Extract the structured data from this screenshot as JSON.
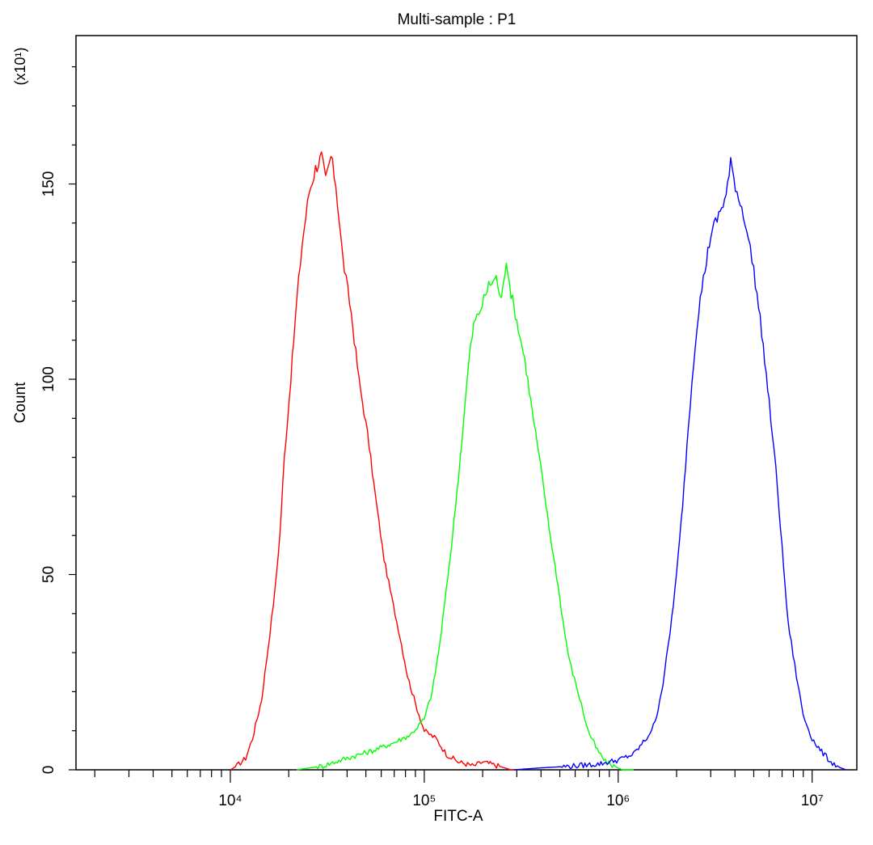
{
  "chart_data": {
    "type": "line",
    "title": "Multi-sample : P1",
    "xlabel": "FITC-A",
    "ylabel": "Count",
    "y_multiplier_label": "(x10¹)",
    "x_scale": "log",
    "xlim": [
      1600,
      17000000
    ],
    "ylim": [
      0,
      188
    ],
    "x_ticks": [
      {
        "value": 10000,
        "label": "10⁴"
      },
      {
        "value": 100000,
        "label": "10⁵"
      },
      {
        "value": 1000000,
        "label": "10⁶"
      },
      {
        "value": 10000000,
        "label": "10⁷"
      }
    ],
    "y_ticks": [
      {
        "value": 0,
        "label": "0"
      },
      {
        "value": 50,
        "label": "50"
      },
      {
        "value": 100,
        "label": "100"
      },
      {
        "value": 150,
        "label": "150"
      }
    ],
    "grid": false,
    "legend": "none",
    "series": [
      {
        "color": "#ff0000",
        "points": [
          [
            10000,
            0
          ],
          [
            10800,
            1
          ],
          [
            12000,
            3
          ],
          [
            13000,
            8
          ],
          [
            14500,
            18
          ],
          [
            16000,
            35
          ],
          [
            17000,
            46
          ],
          [
            18000,
            60
          ],
          [
            19000,
            80
          ],
          [
            20500,
            100
          ],
          [
            22000,
            120
          ],
          [
            23500,
            135
          ],
          [
            25500,
            148
          ],
          [
            27500,
            154
          ],
          [
            29500,
            157
          ],
          [
            31000,
            151
          ],
          [
            33000,
            157
          ],
          [
            35000,
            150
          ],
          [
            38000,
            131
          ],
          [
            42000,
            117
          ],
          [
            46000,
            100
          ],
          [
            51000,
            86
          ],
          [
            56000,
            70
          ],
          [
            62000,
            54
          ],
          [
            68000,
            44
          ],
          [
            75000,
            34
          ],
          [
            82000,
            24
          ],
          [
            90000,
            17
          ],
          [
            100000,
            10
          ],
          [
            115000,
            8
          ],
          [
            130000,
            4
          ],
          [
            150000,
            2
          ],
          [
            180000,
            1
          ],
          [
            200000,
            2
          ],
          [
            240000,
            1
          ],
          [
            280000,
            0
          ],
          [
            310000,
            0
          ]
        ]
      },
      {
        "color": "#00ff00",
        "points": [
          [
            22000,
            0
          ],
          [
            30000,
            1
          ],
          [
            40000,
            3
          ],
          [
            55000,
            5
          ],
          [
            70000,
            7
          ],
          [
            85000,
            9
          ],
          [
            100000,
            13
          ],
          [
            110000,
            20
          ],
          [
            120000,
            32
          ],
          [
            130000,
            46
          ],
          [
            140000,
            60
          ],
          [
            150000,
            75
          ],
          [
            160000,
            90
          ],
          [
            170000,
            105
          ],
          [
            180000,
            114
          ],
          [
            195000,
            118
          ],
          [
            215000,
            124
          ],
          [
            235000,
            126
          ],
          [
            250000,
            120
          ],
          [
            265000,
            131
          ],
          [
            280000,
            122
          ],
          [
            300000,
            115
          ],
          [
            330000,
            105
          ],
          [
            360000,
            92
          ],
          [
            400000,
            77
          ],
          [
            440000,
            62
          ],
          [
            490000,
            47
          ],
          [
            530000,
            35
          ],
          [
            560000,
            28
          ],
          [
            620000,
            20
          ],
          [
            700000,
            10
          ],
          [
            780000,
            5
          ],
          [
            860000,
            2
          ],
          [
            950000,
            1
          ],
          [
            1050000,
            0
          ],
          [
            1200000,
            0
          ]
        ]
      },
      {
        "color": "#0000ff",
        "points": [
          [
            290000,
            0
          ],
          [
            400000,
            0.5
          ],
          [
            600000,
            1
          ],
          [
            800000,
            1.5
          ],
          [
            1000000,
            2.5
          ],
          [
            1200000,
            4
          ],
          [
            1400000,
            8
          ],
          [
            1550000,
            12
          ],
          [
            1700000,
            22
          ],
          [
            1850000,
            35
          ],
          [
            2000000,
            50
          ],
          [
            2150000,
            68
          ],
          [
            2300000,
            88
          ],
          [
            2450000,
            105
          ],
          [
            2600000,
            118
          ],
          [
            2800000,
            128
          ],
          [
            3000000,
            137
          ],
          [
            3300000,
            142
          ],
          [
            3600000,
            147
          ],
          [
            3800000,
            155
          ],
          [
            4100000,
            148
          ],
          [
            4500000,
            141
          ],
          [
            5000000,
            128
          ],
          [
            5500000,
            112
          ],
          [
            6000000,
            94
          ],
          [
            6500000,
            77
          ],
          [
            7000000,
            57
          ],
          [
            7500000,
            38
          ],
          [
            8300000,
            24
          ],
          [
            9000000,
            14
          ],
          [
            10000000,
            8
          ],
          [
            11000000,
            5
          ],
          [
            12500000,
            2
          ],
          [
            14000000,
            0.5
          ],
          [
            15000000,
            0
          ]
        ]
      }
    ]
  }
}
